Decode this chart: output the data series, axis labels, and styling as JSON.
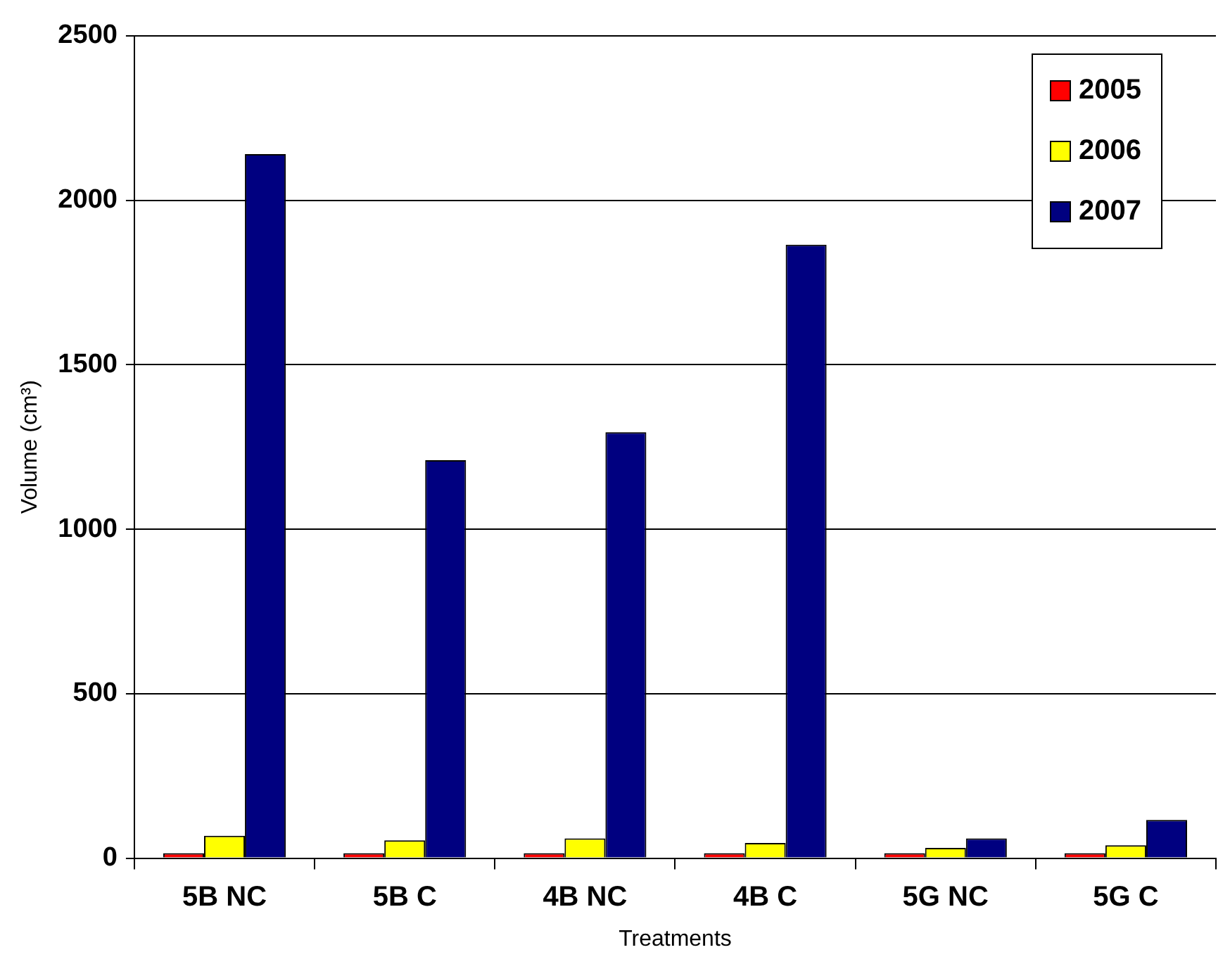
{
  "chart_data": {
    "type": "bar",
    "xlabel": "Treatments",
    "ylabel": "Volume (cm³)",
    "categories": [
      "5B NC",
      "5B C",
      "4B NC",
      "4B C",
      "5G NC",
      "5G C"
    ],
    "series": [
      {
        "name": "2005",
        "color": "#ff0000",
        "values": [
          15,
          15,
          15,
          15,
          15,
          15
        ]
      },
      {
        "name": "2006",
        "color": "#ffff00",
        "values": [
          68,
          54,
          60,
          46,
          31,
          39
        ]
      },
      {
        "name": "2007",
        "color": "#000080",
        "values": [
          2140,
          1210,
          1295,
          1865,
          60,
          116
        ]
      }
    ],
    "ylim": [
      0,
      2500
    ],
    "yticks": [
      0,
      500,
      1000,
      1500,
      2000,
      2500
    ],
    "grid": "y",
    "legend": "top right"
  }
}
